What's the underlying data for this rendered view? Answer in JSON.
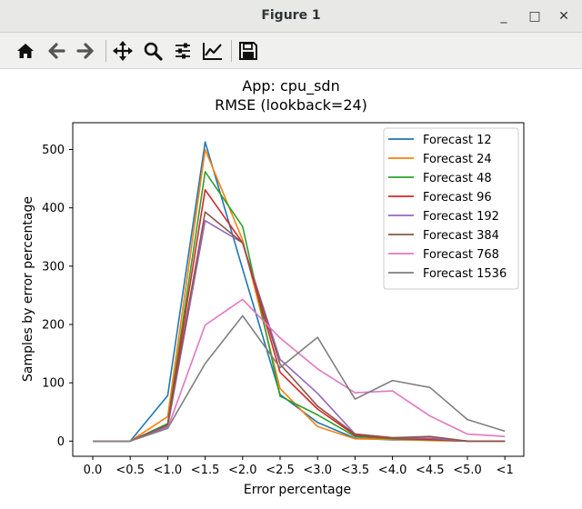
{
  "window": {
    "title": "Figure 1",
    "minimize_label": "_",
    "maximize_label": "□",
    "close_label": "✕"
  },
  "toolbar": {
    "buttons": [
      "home-icon",
      "back-arrow-icon",
      "forward-arrow-icon",
      "pan-icon",
      "zoom-icon",
      "subplots-config-icon",
      "edit-axes-icon",
      "save-icon"
    ]
  },
  "chart_data": {
    "type": "line",
    "title": "App: cpu_sdn",
    "subtitle": "RMSE (lookback=24)",
    "xlabel": "Error percentage",
    "ylabel": "Samples by error percentage",
    "categories": [
      "0.0",
      "<0.5",
      "<1.0",
      "<1.5",
      "<2.0",
      "<2.5",
      "<3.0",
      "<3.5",
      "<4.0",
      "<4.5",
      "<5.0",
      "<1"
    ],
    "yticks": [
      0,
      100,
      200,
      300,
      400,
      500
    ],
    "ylim": [
      -26,
      546
    ],
    "grid": false,
    "legend_position": "top-right",
    "series": [
      {
        "name": "Forecast 12",
        "color": "#1f77b4",
        "values": [
          0,
          0,
          78,
          513,
          295,
          80,
          32,
          5,
          2,
          2,
          0,
          0
        ]
      },
      {
        "name": "Forecast 24",
        "color": "#ff7f0e",
        "values": [
          0,
          0,
          42,
          500,
          345,
          90,
          25,
          4,
          3,
          1,
          0,
          0
        ]
      },
      {
        "name": "Forecast 48",
        "color": "#2ca02c",
        "values": [
          0,
          0,
          30,
          462,
          368,
          77,
          45,
          8,
          4,
          2,
          0,
          0
        ]
      },
      {
        "name": "Forecast 96",
        "color": "#d62728",
        "values": [
          0,
          0,
          28,
          431,
          340,
          118,
          55,
          10,
          5,
          3,
          0,
          0
        ]
      },
      {
        "name": "Forecast 192",
        "color": "#9467bd",
        "values": [
          0,
          0,
          25,
          378,
          340,
          140,
          82,
          12,
          6,
          5,
          0,
          0
        ]
      },
      {
        "name": "Forecast 384",
        "color": "#8c564b",
        "values": [
          0,
          0,
          28,
          393,
          340,
          132,
          60,
          12,
          6,
          8,
          0,
          0
        ]
      },
      {
        "name": "Forecast 768",
        "color": "#e377c2",
        "values": [
          0,
          0,
          22,
          199,
          243,
          177,
          124,
          83,
          86,
          43,
          12,
          8
        ]
      },
      {
        "name": "Forecast 1536",
        "color": "#7f7f7f",
        "values": [
          0,
          0,
          22,
          133,
          215,
          126,
          178,
          72,
          104,
          92,
          37,
          17
        ]
      }
    ]
  }
}
